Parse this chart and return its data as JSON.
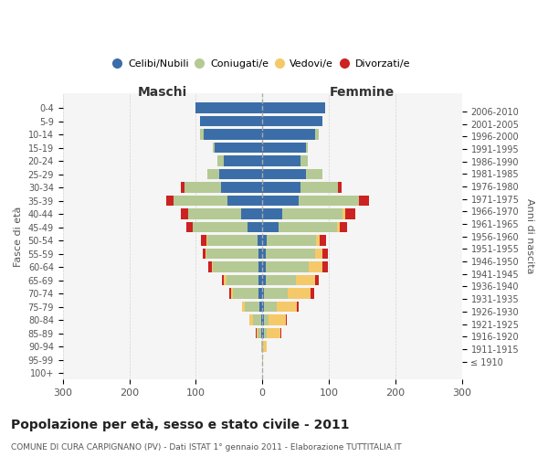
{
  "age_groups": [
    "100+",
    "95-99",
    "90-94",
    "85-89",
    "80-84",
    "75-79",
    "70-74",
    "65-69",
    "60-64",
    "55-59",
    "50-54",
    "45-49",
    "40-44",
    "35-39",
    "30-34",
    "25-29",
    "20-24",
    "15-19",
    "10-14",
    "5-9",
    "0-4"
  ],
  "birth_years": [
    "≤ 1910",
    "1911-1915",
    "1916-1920",
    "1921-1925",
    "1926-1930",
    "1931-1935",
    "1936-1940",
    "1941-1945",
    "1946-1950",
    "1951-1955",
    "1956-1960",
    "1961-1965",
    "1966-1970",
    "1971-1975",
    "1976-1980",
    "1981-1985",
    "1986-1990",
    "1991-1995",
    "1996-2000",
    "2001-2005",
    "2006-2010"
  ],
  "m_cel": [
    0,
    0,
    0,
    1,
    2,
    4,
    6,
    6,
    6,
    6,
    7,
    22,
    32,
    52,
    62,
    65,
    58,
    72,
    88,
    93,
    100
  ],
  "m_con": [
    0,
    0,
    1,
    6,
    12,
    22,
    38,
    48,
    68,
    78,
    76,
    82,
    80,
    82,
    55,
    18,
    10,
    3,
    5,
    0,
    0
  ],
  "m_ved": [
    0,
    0,
    0,
    2,
    5,
    4,
    3,
    4,
    2,
    1,
    1,
    0,
    0,
    0,
    0,
    0,
    0,
    0,
    0,
    0,
    0
  ],
  "m_div": [
    0,
    0,
    0,
    1,
    0,
    0,
    2,
    2,
    5,
    5,
    8,
    10,
    10,
    10,
    5,
    0,
    0,
    0,
    0,
    0,
    0
  ],
  "f_nub": [
    0,
    0,
    0,
    2,
    2,
    2,
    3,
    5,
    5,
    5,
    6,
    24,
    30,
    55,
    58,
    65,
    58,
    66,
    80,
    90,
    95
  ],
  "f_con": [
    0,
    0,
    1,
    5,
    8,
    20,
    35,
    45,
    65,
    75,
    75,
    88,
    90,
    90,
    56,
    25,
    10,
    3,
    5,
    0,
    0
  ],
  "f_ved": [
    0,
    1,
    5,
    20,
    25,
    30,
    35,
    30,
    20,
    10,
    5,
    5,
    5,
    0,
    0,
    0,
    0,
    0,
    0,
    0,
    0
  ],
  "f_div": [
    0,
    0,
    0,
    2,
    2,
    2,
    5,
    5,
    8,
    8,
    10,
    10,
    15,
    15,
    5,
    0,
    0,
    0,
    0,
    0,
    0
  ],
  "color_celibi": "#3b6ea8",
  "color_coniugati": "#b5c994",
  "color_vedovi": "#f5c96a",
  "color_divorziati": "#cc2222",
  "xlim": 300,
  "title_main": "Popolazione per età, sesso e stato civile - 2011",
  "title_sub": "COMUNE DI CURA CARPIGNANO (PV) - Dati ISTAT 1° gennaio 2011 - Elaborazione TUTTITALIA.IT",
  "ylabel_left": "Fasce di età",
  "ylabel_right": "Anni di nascita",
  "xlabel_maschi": "Maschi",
  "xlabel_femmine": "Femmine",
  "bg_color": "#f5f5f5",
  "bar_height": 0.8
}
